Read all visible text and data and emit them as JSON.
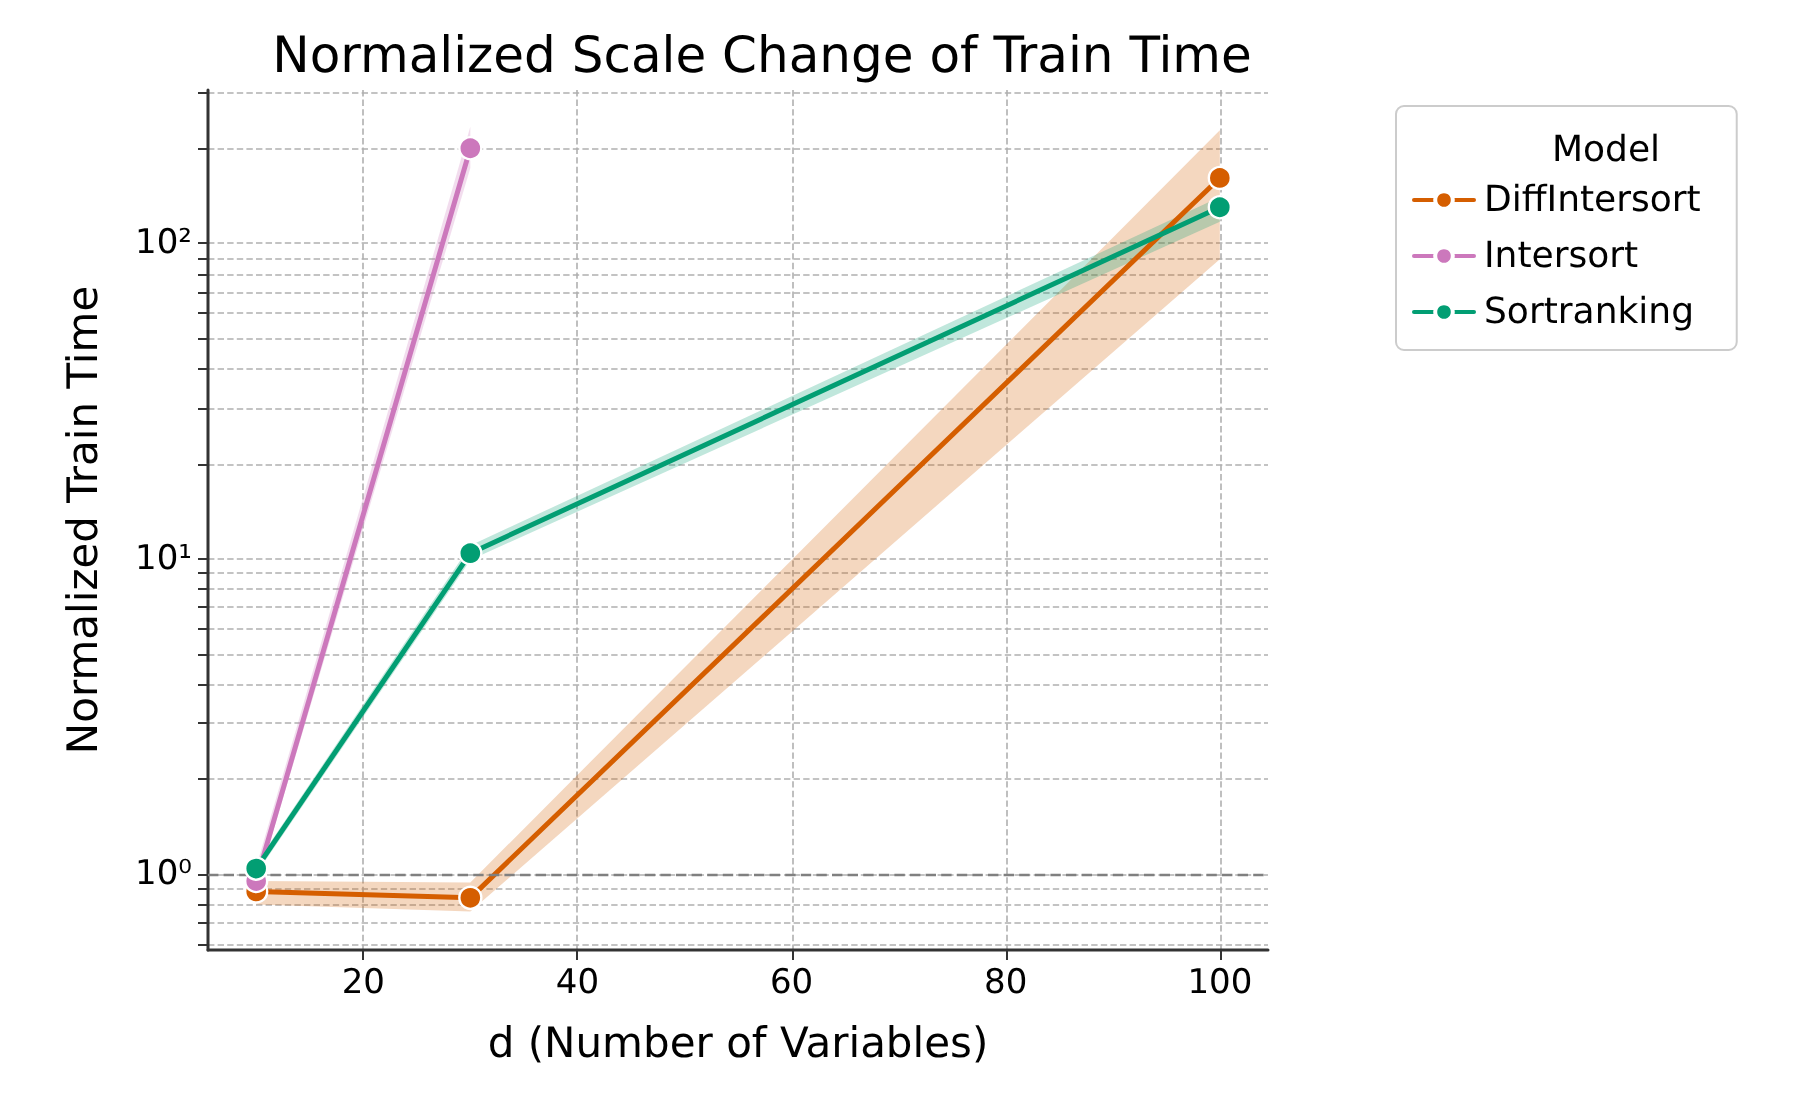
{
  "chart_data": {
    "type": "line",
    "title": "Normalized Scale Change of Train Time",
    "xlabel": "d (Number of Variables)",
    "ylabel": "Normalized Train Time",
    "legend_title": "Model",
    "x": [
      10,
      30,
      100
    ],
    "series": [
      {
        "name": "DiffIntersort",
        "color": "#d55e00",
        "values": [
          0.88,
          0.84,
          161
        ],
        "lower": [
          0.8,
          0.76,
          89
        ],
        "upper": [
          0.95,
          0.94,
          228
        ]
      },
      {
        "name": "Intersort",
        "color": "#cc78bc",
        "values": [
          0.95,
          200,
          null
        ],
        "lower": [
          0.9,
          173,
          null
        ],
        "upper": [
          1.05,
          234,
          null
        ]
      },
      {
        "name": "Sortranking",
        "color": "#029e73",
        "values": [
          1.04,
          10.4,
          130
        ],
        "lower": [
          1.0,
          9.9,
          117
        ],
        "upper": [
          1.08,
          11,
          140
        ]
      }
    ],
    "log": "y",
    "xlim": [
      5.5,
      104.5
    ],
    "ylim": [
      0.574,
      306
    ],
    "xticks": [
      20,
      40,
      60,
      80,
      100
    ],
    "yticks": [
      {
        "value": 0.6,
        "label": null
      },
      {
        "value": 0.7,
        "label": null
      },
      {
        "value": 0.8,
        "label": null
      },
      {
        "value": 0.9,
        "label": null
      },
      {
        "value": 1,
        "label": "10⁰"
      },
      {
        "value": 2,
        "label": null
      },
      {
        "value": 3,
        "label": null
      },
      {
        "value": 4,
        "label": null
      },
      {
        "value": 5,
        "label": null
      },
      {
        "value": 6,
        "label": null
      },
      {
        "value": 7,
        "label": null
      },
      {
        "value": 8,
        "label": null
      },
      {
        "value": 9,
        "label": null
      },
      {
        "value": 10,
        "label": "10¹"
      },
      {
        "value": 20,
        "label": null
      },
      {
        "value": 30,
        "label": null
      },
      {
        "value": 40,
        "label": null
      },
      {
        "value": 50,
        "label": null
      },
      {
        "value": 60,
        "label": null
      },
      {
        "value": 70,
        "label": null
      },
      {
        "value": 80,
        "label": null
      },
      {
        "value": 90,
        "label": null
      },
      {
        "value": 100,
        "label": "10²"
      },
      {
        "value": 200,
        "label": null
      },
      {
        "value": 300,
        "label": null
      }
    ],
    "ref_lines": [
      {
        "axis": "y",
        "value": 1,
        "label": null,
        "color": "#808080",
        "line_style": "dashed"
      }
    ],
    "grid": true,
    "legend": "top right",
    "marker": "circle",
    "line_style": "solid"
  }
}
